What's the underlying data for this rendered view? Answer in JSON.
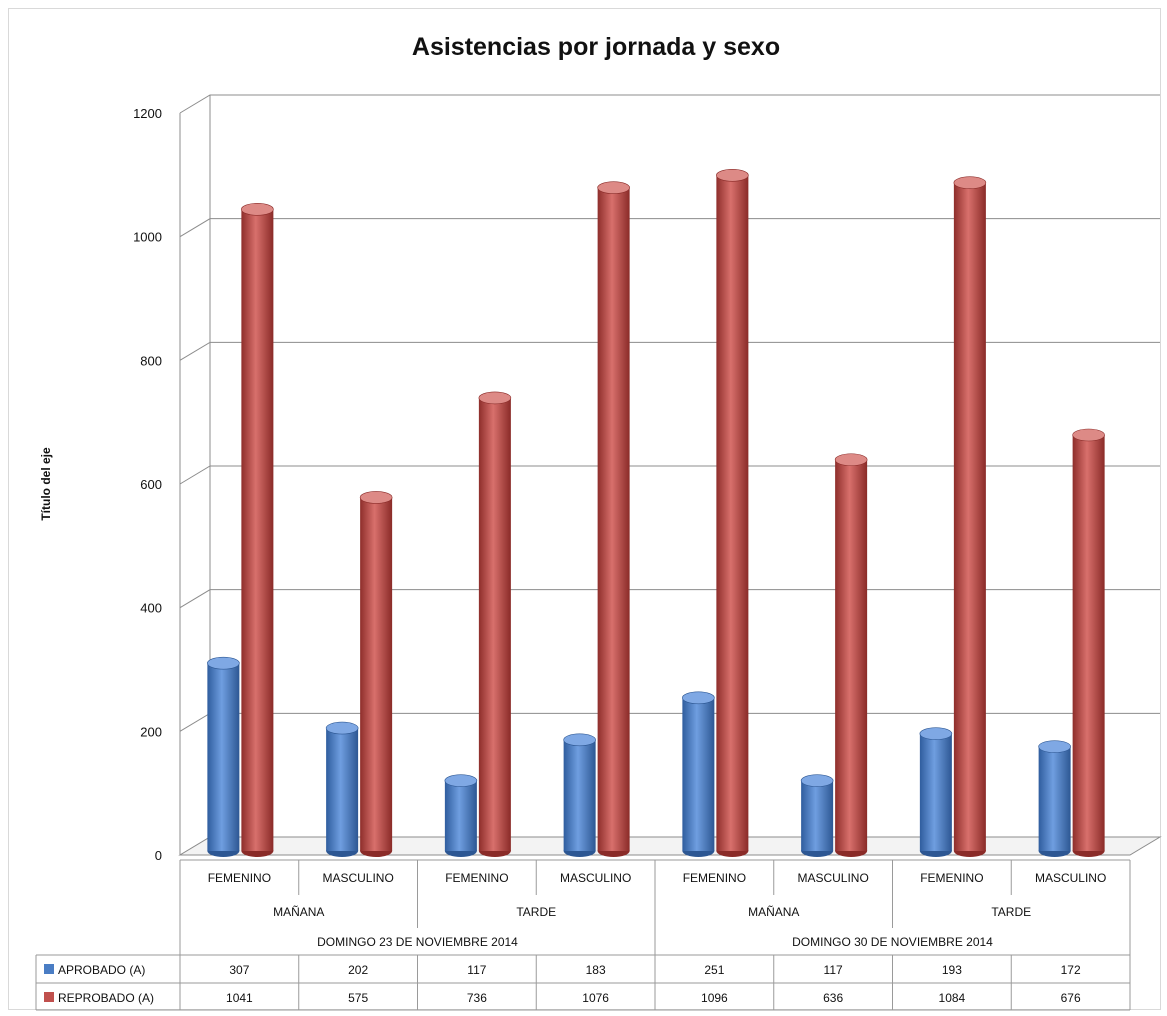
{
  "chart_data": {
    "type": "bar",
    "title": "Asistencias por jornada y sexo",
    "ylabel": "Título del eje",
    "ylim": [
      0,
      1200
    ],
    "yticks": [
      "0",
      "200",
      "400",
      "600",
      "800",
      "1000",
      "1200"
    ],
    "grid": true,
    "legend": "table-bottom",
    "categories": [
      "FEMENINO",
      "MASCULINO",
      "FEMENINO",
      "MASCULINO",
      "FEMENINO",
      "MASCULINO",
      "FEMENINO",
      "MASCULINO"
    ],
    "jornadas": [
      "MAÑANA",
      "TARDE",
      "MAÑANA",
      "TARDE"
    ],
    "fechas": [
      "DOMINGO 23 DE NOVIEMBRE 2014",
      "DOMINGO 30 DE NOVIEMBRE 2014"
    ],
    "series": [
      {
        "name": "APROBADO (A)",
        "color": "#4a7dc4",
        "values": [
          307,
          202,
          117,
          183,
          251,
          117,
          193,
          172
        ]
      },
      {
        "name": "REPROBADO (A)",
        "color": "#c0504d",
        "values": [
          1041,
          575,
          736,
          1076,
          1096,
          636,
          1084,
          676
        ]
      }
    ]
  }
}
